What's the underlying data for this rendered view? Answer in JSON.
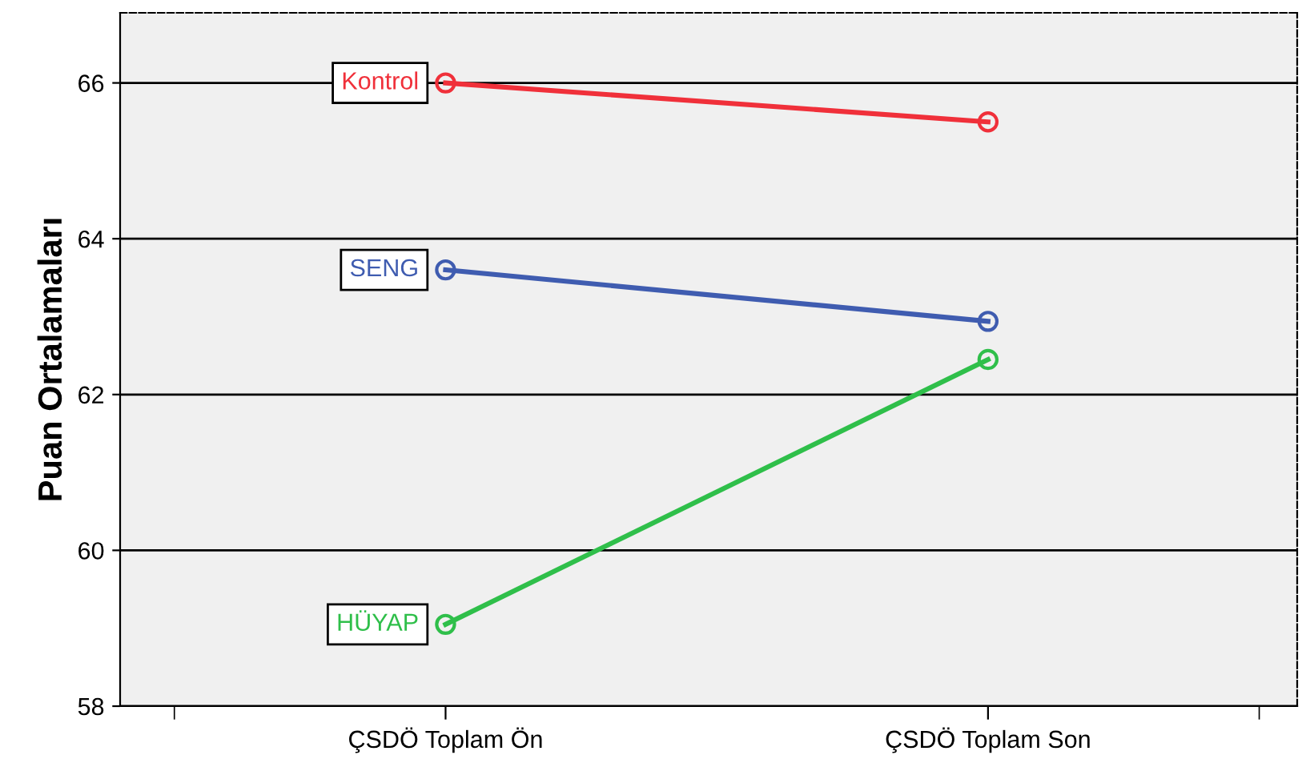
{
  "chart_data": {
    "type": "line",
    "ylabel": "Puan Ortalamaları",
    "categories": [
      "ÇSDÖ Toplam Ön",
      "ÇSDÖ Toplam Son"
    ],
    "series": [
      {
        "name": "Kontrol",
        "color": "#f0303a",
        "values": [
          66.0,
          65.5
        ]
      },
      {
        "name": "SENG",
        "color": "#3f5cb0",
        "values": [
          63.6,
          62.94
        ]
      },
      {
        "name": "HÜYAP",
        "color": "#2fbf4a",
        "values": [
          59.05,
          62.45
        ]
      }
    ],
    "ylim": [
      58,
      66.9
    ],
    "yticks": [
      58,
      60,
      62,
      64,
      66
    ],
    "grid": "y",
    "marker": "circle",
    "line_style": "solid",
    "legend": false
  }
}
